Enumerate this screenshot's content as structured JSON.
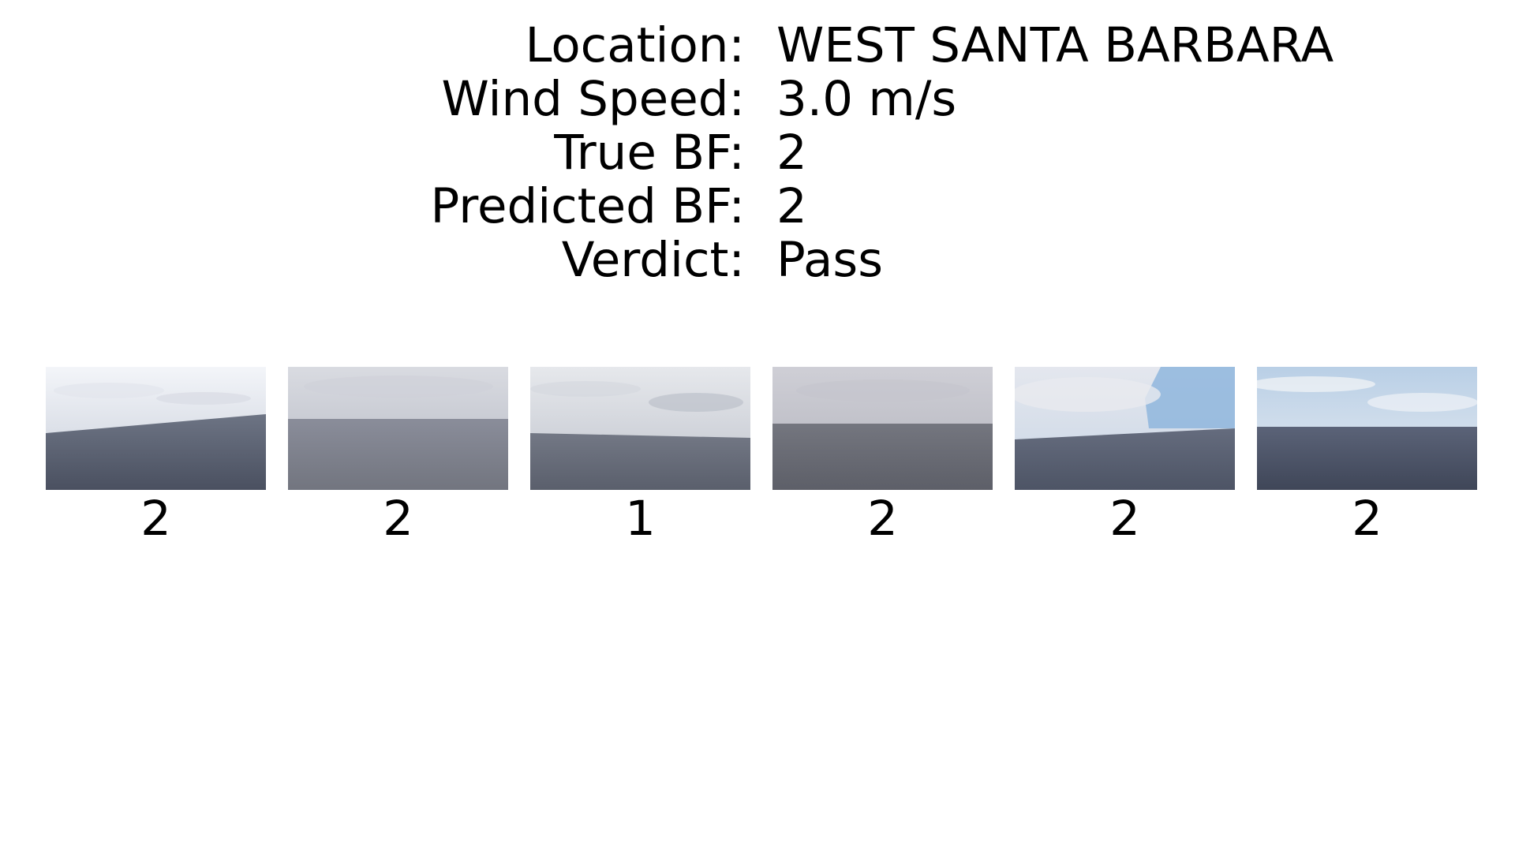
{
  "info": [
    {
      "label": "Location:",
      "value": "WEST SANTA BARBARA"
    },
    {
      "label": "Wind Speed:",
      "value": "3.0 m/s"
    },
    {
      "label": "True BF:",
      "value": "2"
    },
    {
      "label": "Predicted BF:",
      "value": "2"
    },
    {
      "label": "Verdict:",
      "value": "Pass"
    }
  ],
  "thumbnails": [
    {
      "label": "2",
      "sky_top": "#f3f5f9",
      "sky_bottom": "#c7cdd9",
      "sea_top": "#6d7484",
      "sea_bottom": "#4a5060",
      "horizon_tilt": "left-low"
    },
    {
      "label": "2",
      "sky_top": "#d9dbe1",
      "sky_bottom": "#b5b8c3",
      "sea_top": "#8a8d9a",
      "sea_bottom": "#72757f",
      "horizon_tilt": "flat"
    },
    {
      "label": "1",
      "sky_top": "#e6e8ec",
      "sky_bottom": "#bfc3cc",
      "sea_top": "#737885",
      "sea_bottom": "#5a5f6c",
      "horizon_tilt": "flat"
    },
    {
      "label": "2",
      "sky_top": "#cfcfd6",
      "sky_bottom": "#b2b3bc",
      "sea_top": "#74767f",
      "sea_bottom": "#5d5f68",
      "horizon_tilt": "flat"
    },
    {
      "label": "2",
      "sky_top": "#e4e7ee",
      "sky_bottom": "#c9d6e6",
      "sea_top": "#656c7e",
      "sea_bottom": "#4d5465",
      "horizon_tilt": "flat",
      "blue_patch": "#8fb6dd"
    },
    {
      "label": "2",
      "sky_top": "#b9cfe6",
      "sky_bottom": "#e8ecf1",
      "sea_top": "#5b6378",
      "sea_bottom": "#3f4658",
      "horizon_tilt": "flat"
    }
  ]
}
